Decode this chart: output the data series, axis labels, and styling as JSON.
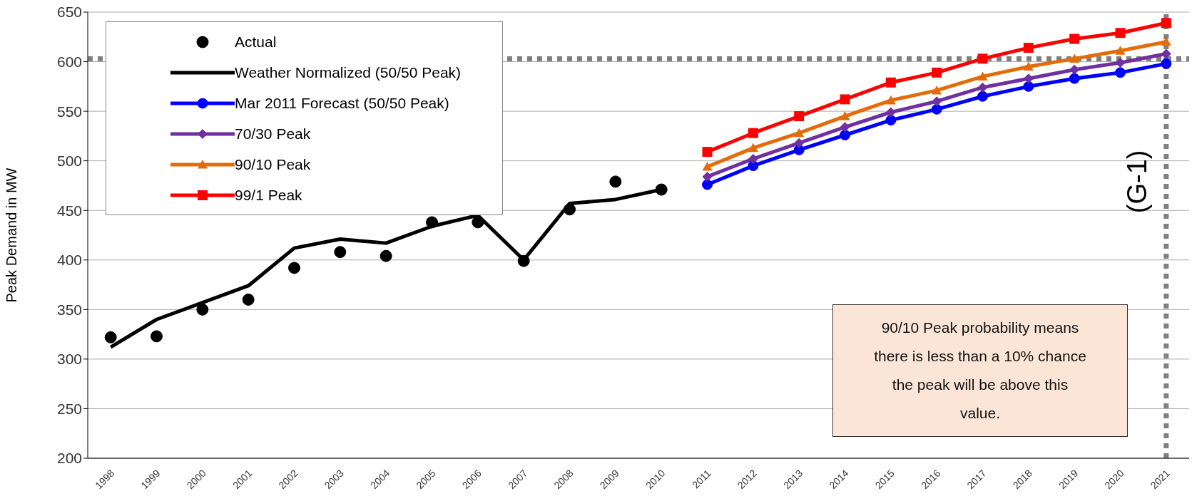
{
  "chart_data": {
    "type": "line",
    "ylabel": "Peak Demand in MW",
    "categories": [
      "1998",
      "1999",
      "2000",
      "2001",
      "2002",
      "2003",
      "2004",
      "2005",
      "2006",
      "2007",
      "2008",
      "2009",
      "2010",
      "2011",
      "2012",
      "2013",
      "2014",
      "2015",
      "2016",
      "2017",
      "2018",
      "2019",
      "2020",
      "2021"
    ],
    "series": [
      {
        "name": "Actual",
        "type": "scatter",
        "marker": "circle",
        "color": "#000000",
        "values": [
          322,
          323,
          350,
          360,
          392,
          408,
          404,
          438,
          438,
          399,
          451,
          479,
          471,
          null,
          null,
          null,
          null,
          null,
          null,
          null,
          null,
          null,
          null,
          null
        ]
      },
      {
        "name": "Weather Normalized (50/50 Peak)",
        "marker": "none",
        "color": "#000000",
        "values": [
          312,
          340,
          357,
          374,
          412,
          421,
          417,
          434,
          445,
          400,
          457,
          461,
          471,
          null,
          null,
          null,
          null,
          null,
          null,
          null,
          null,
          null,
          null,
          null
        ]
      },
      {
        "name": "Mar 2011 Forecast (50/50 Peak)",
        "marker": "circle",
        "color": "#0000ff",
        "values": [
          null,
          null,
          null,
          null,
          null,
          null,
          null,
          null,
          null,
          null,
          null,
          null,
          null,
          476,
          495,
          511,
          526,
          541,
          552,
          565,
          575,
          583,
          589,
          598
        ]
      },
      {
        "name": "70/30 Peak",
        "marker": "diamond",
        "color": "#7030a0",
        "values": [
          null,
          null,
          null,
          null,
          null,
          null,
          null,
          null,
          null,
          null,
          null,
          null,
          null,
          484,
          502,
          518,
          534,
          549,
          560,
          574,
          583,
          592,
          599,
          608
        ]
      },
      {
        "name": "90/10 Peak",
        "marker": "triangle",
        "color": "#e36c09",
        "values": [
          null,
          null,
          null,
          null,
          null,
          null,
          null,
          null,
          null,
          null,
          null,
          null,
          null,
          494,
          513,
          528,
          545,
          561,
          571,
          585,
          595,
          603,
          611,
          620
        ]
      },
      {
        "name": "99/1 Peak",
        "marker": "square",
        "color": "#ff0000",
        "values": [
          null,
          null,
          null,
          null,
          null,
          null,
          null,
          null,
          null,
          null,
          null,
          null,
          null,
          509,
          528,
          545,
          562,
          579,
          589,
          603,
          614,
          623,
          629,
          639
        ]
      }
    ],
    "ylim": [
      200,
      650
    ],
    "yticks": [
      200,
      250,
      300,
      350,
      400,
      450,
      500,
      550,
      600,
      650
    ],
    "grid": "y",
    "legend": "top left",
    "ref_lines": [
      {
        "axis": "y",
        "value": 603,
        "color": "#808080",
        "line_style": "dotted"
      },
      {
        "axis": "x",
        "value": "2021",
        "label": "(G-1)",
        "color": "#808080",
        "line_style": "dotted"
      }
    ],
    "annotations": [
      "90/10 Peak probability means there is less than a 10% chance the peak will be above this value."
    ]
  }
}
